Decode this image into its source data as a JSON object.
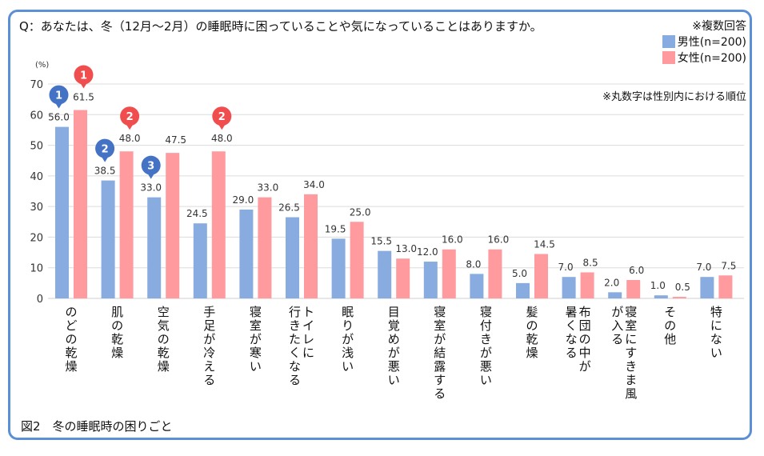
{
  "question": "Q：あなたは、冬（12月～2月）の睡眠時に困っていることや気になっていることはありますか。",
  "note_multiple": "※複数回答",
  "note_rank": "※丸数字は性別内における順位",
  "caption": "図2　冬の睡眠時の困りごと",
  "colors": {
    "male": "#88acdf",
    "female": "#ff9a9e",
    "male_badge": "#4472c4",
    "female_badge": "#f04e4e",
    "frame": "#5b8fd6"
  },
  "chart_data": {
    "type": "bar",
    "title": "冬の睡眠時の困りごと",
    "ylabel": "(%)",
    "xlabel": "",
    "ylim": [
      0,
      70
    ],
    "yticks": [
      0,
      10,
      20,
      30,
      40,
      50,
      60,
      70
    ],
    "grid": true,
    "legend_position": "top-right",
    "categories": [
      "のどの乾燥",
      "肌の乾燥",
      "空気の乾燥",
      "手足が冷える",
      "寝室が寒い",
      "トイレに行きたくなる",
      "眠りが浅い",
      "目覚めが悪い",
      "寝室が結露する",
      "寝付きが悪い",
      "髪の乾燥",
      "布団の中が暑くなる",
      "寝室にすきま風が入る",
      "その他",
      "特にない"
    ],
    "category_lines": [
      [
        "のどの乾燥"
      ],
      [
        "肌の乾燥"
      ],
      [
        "空気の乾燥"
      ],
      [
        "手足が冷える"
      ],
      [
        "寝室が寒い"
      ],
      [
        "トイレに",
        "行きたくなる"
      ],
      [
        "眠りが浅い"
      ],
      [
        "目覚めが悪い"
      ],
      [
        "寝室が結露する"
      ],
      [
        "寝付きが悪い"
      ],
      [
        "髪の乾燥"
      ],
      [
        "布団の中が",
        "暑くなる"
      ],
      [
        "寝室にすきま風",
        "が入る"
      ],
      [
        "その他"
      ],
      [
        "特にない"
      ]
    ],
    "series": [
      {
        "name": "男性(n=200)",
        "key": "male",
        "values": [
          56.0,
          38.5,
          33.0,
          24.5,
          29.0,
          26.5,
          19.5,
          15.5,
          12.0,
          8.0,
          5.0,
          7.0,
          2.0,
          1.0,
          7.0
        ]
      },
      {
        "name": "女性(n=200)",
        "key": "female",
        "values": [
          61.5,
          48.0,
          47.5,
          48.0,
          33.0,
          34.0,
          25.0,
          13.0,
          16.0,
          16.0,
          14.5,
          8.5,
          6.0,
          0.5,
          7.5
        ]
      }
    ],
    "rank_badges": [
      {
        "series": "male",
        "category_index": 0,
        "rank": "1"
      },
      {
        "series": "male",
        "category_index": 1,
        "rank": "2"
      },
      {
        "series": "male",
        "category_index": 2,
        "rank": "3"
      },
      {
        "series": "female",
        "category_index": 0,
        "rank": "1"
      },
      {
        "series": "female",
        "category_index": 1,
        "rank": "2"
      },
      {
        "series": "female",
        "category_index": 3,
        "rank": "2"
      }
    ]
  }
}
